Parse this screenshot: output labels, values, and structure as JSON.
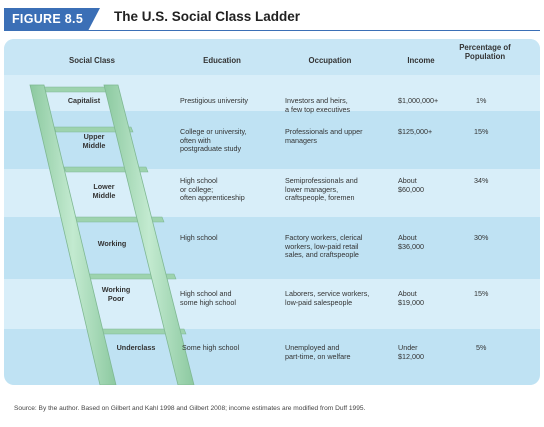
{
  "figure": {
    "tag": "FIGURE 8.5",
    "title": "The U.S. Social Class Ladder"
  },
  "headers": {
    "social_class": "Social Class",
    "education": "Education",
    "occupation": "Occupation",
    "income": "Income",
    "percentage": "Percentage of\nPopulation"
  },
  "rows": [
    {
      "class": "Capitalist",
      "education": "Prestigious university",
      "occupation": "Investors and heirs,\na few top executives",
      "income": "$1,000,000+",
      "percent": "1%"
    },
    {
      "class": "Upper\nMiddle",
      "education": "College or university,\noften with\npostgraduate study",
      "occupation": "Professionals and upper\nmanagers",
      "income": "$125,000+",
      "percent": "15%"
    },
    {
      "class": "Lower\nMiddle",
      "education": "High school\nor college;\noften apprenticeship",
      "occupation": "Semiprofessionals and\nlower managers,\ncraftspeople, foremen",
      "income": "About\n$60,000",
      "percent": "34%"
    },
    {
      "class": "Working",
      "education": "High school",
      "occupation": "Factory workers, clerical\nworkers, low-paid retail\nsales, and craftspeople",
      "income": "About\n$36,000",
      "percent": "30%"
    },
    {
      "class": "Working\nPoor",
      "education": "High school and\nsome high school",
      "occupation": "Laborers, service workers,\nlow-paid salespeople",
      "income": "About\n$19,000",
      "percent": "15%"
    },
    {
      "class": "Underclass",
      "education": "Some high school",
      "occupation": "Unemployed and\npart-time, on welfare",
      "income": "Under\n$12,000",
      "percent": "5%"
    }
  ],
  "source": "Source: By the author. Based on Gilbert and Kahl 1998 and Gilbert 2008; income estimates are modified from Duff 1995.",
  "colors": {
    "accent": "#3b6fb6",
    "panel": "#bfe2f3",
    "ladder": "#a6d8b4"
  }
}
